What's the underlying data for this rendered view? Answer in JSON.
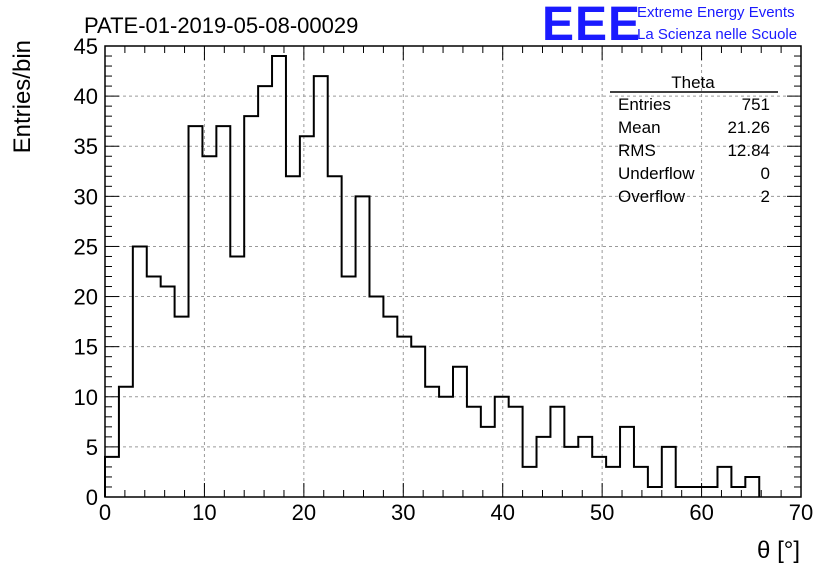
{
  "title": "PATE-01-2019-05-08-00029",
  "logo": {
    "letters": "EEE",
    "line1": "Extreme Energy Events",
    "line2": "La Scienza nelle Scuole",
    "color": "#1a1aff"
  },
  "stats": {
    "name": "Theta",
    "rows": [
      {
        "label": "Entries",
        "value": "751"
      },
      {
        "label": "Mean",
        "value": "21.26"
      },
      {
        "label": "RMS",
        "value": "12.84"
      },
      {
        "label": "Underflow",
        "value": "0"
      },
      {
        "label": "Overflow",
        "value": "2"
      }
    ]
  },
  "chart_data": {
    "type": "bar",
    "style": "step-histogram",
    "xlabel": "θ [°]",
    "ylabel": "Entries/bin",
    "xlim": [
      0,
      70
    ],
    "ylim": [
      0,
      45
    ],
    "x_ticks": [
      0,
      10,
      20,
      30,
      40,
      50,
      60,
      70
    ],
    "y_ticks": [
      0,
      5,
      10,
      15,
      20,
      25,
      30,
      35,
      40,
      45
    ],
    "grid": true,
    "bin_width": 1.4,
    "bin_edges_start": 0,
    "values": [
      4,
      11,
      25,
      22,
      21,
      18,
      37,
      34,
      37,
      24,
      38,
      41,
      44,
      32,
      36,
      42,
      32,
      22,
      30,
      20,
      18,
      16,
      15,
      11,
      10,
      13,
      9,
      7,
      10,
      9,
      3,
      6,
      9,
      5,
      6,
      4,
      3,
      7,
      3,
      1,
      5,
      1,
      1,
      1,
      3,
      1,
      2,
      0,
      0,
      0
    ],
    "line_color": "#000000"
  }
}
